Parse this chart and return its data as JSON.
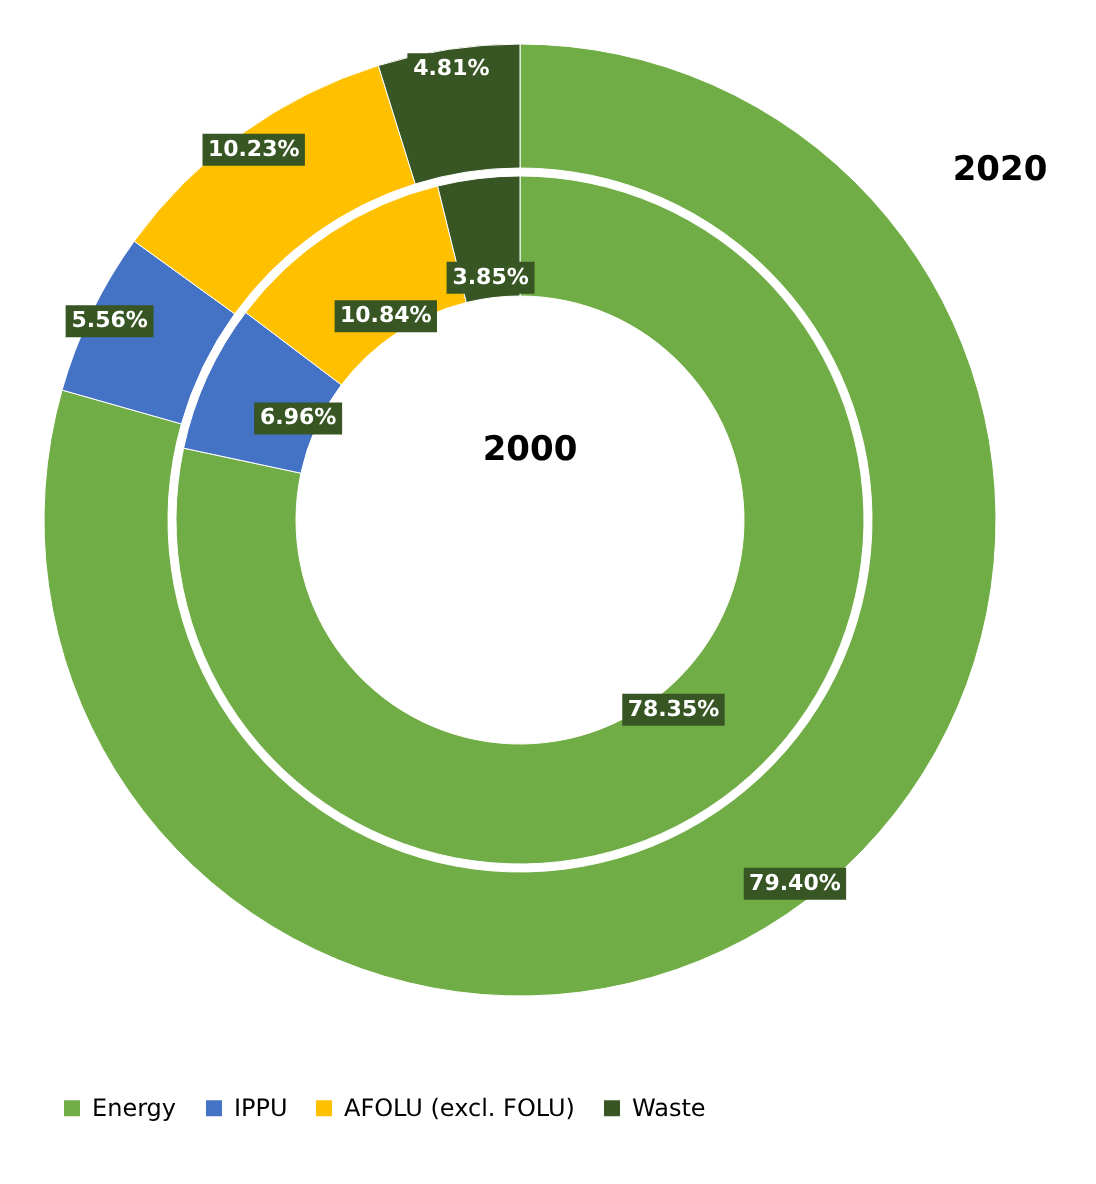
{
  "chart_data": {
    "type": "donut",
    "categories": [
      "Energy",
      "IPPU",
      "AFOLU (excl. FOLU)",
      "Waste"
    ],
    "colors": [
      "#70ad47",
      "#4472c4",
      "#ffc000",
      "#375623"
    ],
    "legend": "bottom",
    "series": [
      {
        "name": "2000",
        "values": [
          78.35,
          6.96,
          10.84,
          3.85
        ],
        "value_labels": [
          "78.35%",
          "6.96%",
          "10.84%",
          "3.85%"
        ]
      },
      {
        "name": "2020",
        "values": [
          79.4,
          5.56,
          10.23,
          4.81
        ],
        "value_labels": [
          "79.40%",
          "5.56%",
          "10.23%",
          "4.81%"
        ]
      }
    ]
  }
}
